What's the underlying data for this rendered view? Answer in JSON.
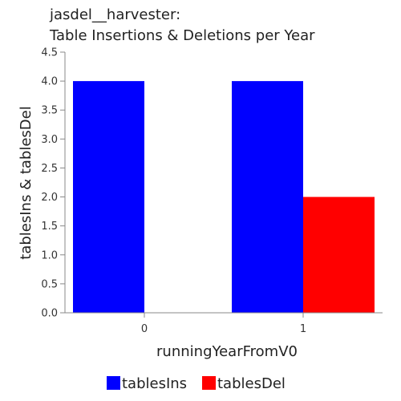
{
  "chart_data": {
    "type": "bar",
    "title": [
      "jasdel__harvester:",
      "Table Insertions & Deletions per Year"
    ],
    "xlabel": "runningYearFromV0",
    "ylabel": "tablesIns & tablesDel",
    "categories": [
      "0",
      "1"
    ],
    "series": [
      {
        "name": "tablesIns",
        "color": "#0000ff",
        "values": [
          4,
          4
        ]
      },
      {
        "name": "tablesDel",
        "color": "#ff0000",
        "values": [
          0,
          2
        ]
      }
    ],
    "ylim": [
      0,
      4.5
    ],
    "yticks": [
      "0.0",
      "0.5",
      "1.0",
      "1.5",
      "2.0",
      "2.5",
      "3.0",
      "3.5",
      "4.0",
      "4.5"
    ],
    "grid": false,
    "legend_position": "bottom"
  }
}
